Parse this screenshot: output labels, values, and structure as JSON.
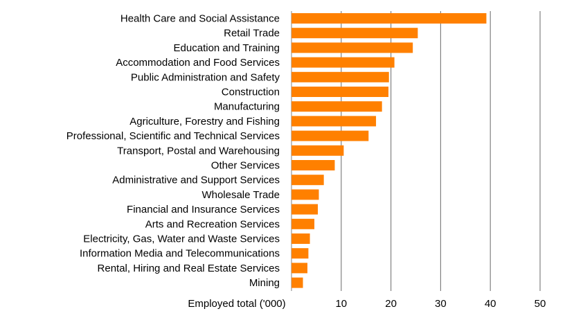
{
  "chart_data": {
    "type": "bar",
    "orientation": "horizontal",
    "categories": [
      "Health Care and Social Assistance",
      "Retail Trade",
      "Education and Training",
      "Accommodation and Food Services",
      "Public Administration and Safety",
      "Construction",
      "Manufacturing",
      "Agriculture, Forestry and Fishing",
      "Professional, Scientific and Technical Services",
      "Transport, Postal and Warehousing",
      "Other Services",
      "Administrative and Support Services",
      "Wholesale Trade",
      "Financial and Insurance Services",
      "Arts and Recreation Services",
      "Electricity, Gas, Water and Waste Services",
      "Information Media and Telecommunications",
      "Rental, Hiring and Real Estate Services",
      "Mining"
    ],
    "values": [
      39.2,
      25.4,
      24.4,
      20.7,
      19.6,
      19.5,
      18.2,
      17.0,
      15.5,
      10.5,
      8.7,
      6.5,
      5.5,
      5.3,
      4.6,
      3.7,
      3.4,
      3.2,
      2.3
    ],
    "xlabel": "Employed total ('000)",
    "xlim": [
      0,
      50
    ],
    "xticks": [
      "10",
      "20",
      "30",
      "40",
      "50"
    ],
    "grid": true,
    "bar_color": "#FF8000",
    "grid_color": "#808080"
  }
}
